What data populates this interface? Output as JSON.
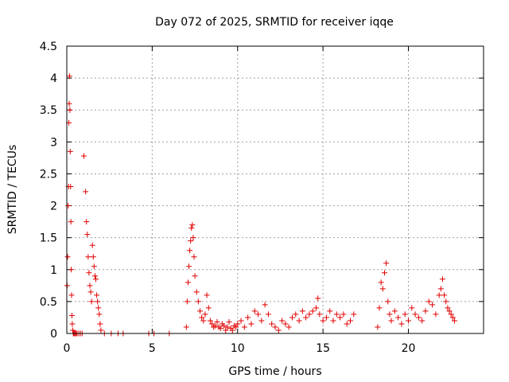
{
  "chart_data": {
    "type": "scatter",
    "title": "Day 072 of 2025, SRMTID for receiver iqqe",
    "xlabel": "GPS time / hours",
    "ylabel": "SRMTID / TECUs",
    "xlim": [
      0,
      24.4
    ],
    "ylim": [
      0,
      4.5
    ],
    "xticks": [
      0,
      5,
      10,
      15,
      20
    ],
    "xtick_labels": [
      "0",
      "5",
      "10",
      "15",
      "20"
    ],
    "yticks": [
      0,
      0.5,
      1,
      1.5,
      2,
      2.5,
      3,
      3.5,
      4,
      4.5
    ],
    "ytick_labels": [
      "0",
      "0.5",
      "1",
      "1.5",
      "2",
      "2.5",
      "3",
      "3.5",
      "4",
      "4.5"
    ],
    "grid": true,
    "marker": "+",
    "marker_color": "#e00000",
    "series": [
      {
        "name": "SRMTID",
        "x": [
          0.02,
          0.05,
          0.08,
          0.1,
          0.12,
          0.14,
          0.16,
          0.18,
          0.2,
          0.22,
          0.24,
          0.26,
          0.28,
          0.3,
          0.32,
          0.35,
          0.38,
          0.4,
          0.45,
          0.5,
          0.55,
          0.6,
          0.7,
          0.8,
          0.9,
          1.0,
          1.1,
          1.15,
          1.2,
          1.25,
          1.3,
          1.35,
          1.4,
          1.45,
          1.5,
          1.55,
          1.6,
          1.65,
          1.7,
          1.75,
          1.8,
          1.85,
          1.9,
          1.95,
          2.0,
          2.2,
          2.6,
          3.0,
          3.3,
          4.8,
          5.1,
          6.0,
          7.0,
          7.05,
          7.1,
          7.15,
          7.2,
          7.25,
          7.3,
          7.35,
          7.4,
          7.45,
          7.5,
          7.6,
          7.7,
          7.8,
          7.9,
          8.0,
          8.1,
          8.2,
          8.3,
          8.4,
          8.5,
          8.6,
          8.7,
          8.8,
          8.9,
          9.0,
          9.1,
          9.2,
          9.3,
          9.4,
          9.5,
          9.6,
          9.7,
          9.8,
          9.9,
          10.0,
          10.2,
          10.4,
          10.6,
          10.8,
          11.0,
          11.2,
          11.4,
          11.6,
          11.8,
          12.0,
          12.2,
          12.4,
          12.6,
          12.8,
          13.0,
          13.2,
          13.4,
          13.6,
          13.8,
          14.0,
          14.2,
          14.4,
          14.6,
          14.7,
          14.8,
          15.0,
          15.2,
          15.4,
          15.6,
          15.8,
          16.0,
          16.2,
          16.4,
          16.6,
          16.8,
          18.2,
          18.3,
          18.4,
          18.5,
          18.6,
          18.7,
          18.8,
          18.9,
          19.0,
          19.2,
          19.4,
          19.6,
          19.8,
          20.0,
          20.2,
          20.4,
          20.6,
          20.8,
          21.0,
          21.2,
          21.4,
          21.6,
          21.8,
          21.9,
          22.0,
          22.1,
          22.2,
          22.3,
          22.4,
          22.5,
          22.6,
          22.7
        ],
        "y": [
          0.75,
          1.2,
          2.0,
          2.3,
          3.3,
          3.6,
          4.03,
          3.5,
          2.85,
          2.3,
          1.75,
          1.0,
          0.6,
          0.28,
          0.15,
          0.05,
          0.0,
          0.0,
          0.0,
          0.0,
          0.0,
          0.0,
          0.0,
          0.0,
          0.0,
          2.78,
          2.22,
          1.75,
          1.55,
          1.2,
          0.95,
          0.75,
          0.65,
          0.5,
          1.38,
          1.2,
          1.05,
          0.9,
          0.85,
          0.6,
          0.5,
          0.4,
          0.3,
          0.15,
          0.05,
          0.0,
          0.0,
          0.0,
          0.0,
          0.0,
          0.0,
          0.0,
          0.1,
          0.5,
          0.8,
          1.05,
          1.3,
          1.45,
          1.65,
          1.7,
          1.5,
          1.2,
          0.9,
          0.65,
          0.5,
          0.35,
          0.25,
          0.2,
          0.3,
          0.6,
          0.4,
          0.2,
          0.15,
          0.1,
          0.12,
          0.18,
          0.1,
          0.08,
          0.15,
          0.12,
          0.05,
          0.1,
          0.18,
          0.08,
          0.05,
          0.12,
          0.1,
          0.15,
          0.2,
          0.1,
          0.25,
          0.15,
          0.35,
          0.3,
          0.2,
          0.45,
          0.3,
          0.15,
          0.1,
          0.05,
          0.2,
          0.15,
          0.1,
          0.25,
          0.3,
          0.2,
          0.35,
          0.25,
          0.3,
          0.35,
          0.4,
          0.55,
          0.3,
          0.2,
          0.25,
          0.35,
          0.2,
          0.3,
          0.25,
          0.3,
          0.15,
          0.2,
          0.3,
          0.1,
          0.4,
          0.8,
          0.7,
          0.95,
          1.1,
          0.5,
          0.3,
          0.2,
          0.35,
          0.25,
          0.15,
          0.3,
          0.2,
          0.4,
          0.3,
          0.25,
          0.2,
          0.35,
          0.5,
          0.45,
          0.3,
          0.6,
          0.7,
          0.85,
          0.6,
          0.5,
          0.4,
          0.35,
          0.3,
          0.25,
          0.2
        ]
      }
    ]
  }
}
